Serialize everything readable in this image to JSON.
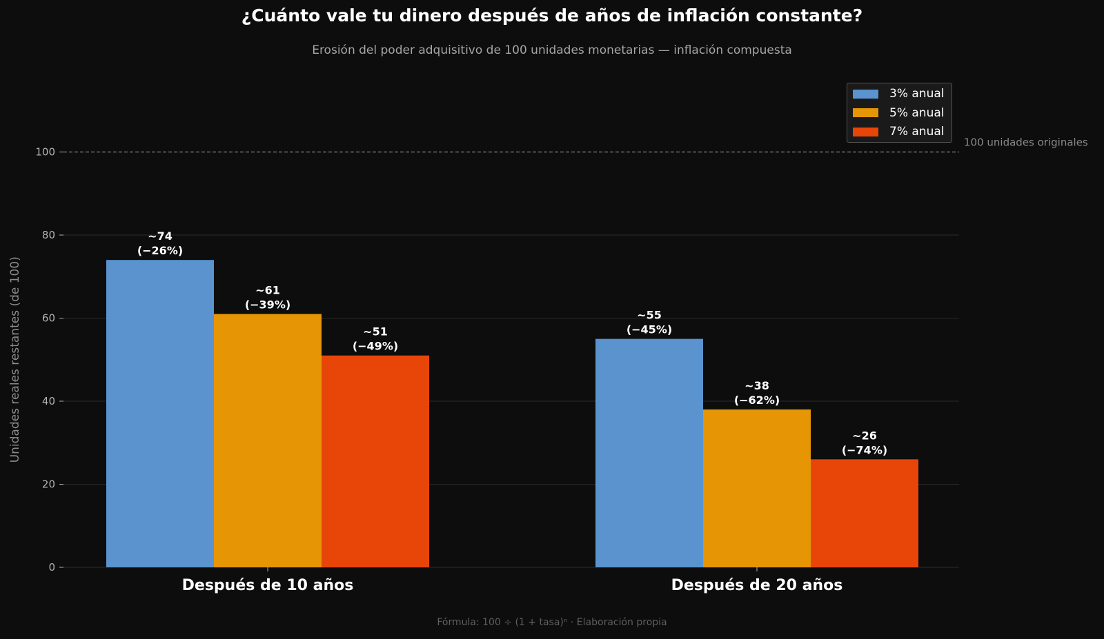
{
  "title": "¿Cuánto vale tu dinero después de años de inflación constante?",
  "subtitle": "Erosión del poder adquisitivo de 100 unidades monetarias — inflación compuesta",
  "footer": "Fórmula: 100 ÷ (1 + tasa)ⁿ   ·   Elaboración propia",
  "chart_data": {
    "type": "bar",
    "categories": [
      "Después de 10 años",
      "Después de 20 años"
    ],
    "series": [
      {
        "name": "3% anual",
        "color": "#5a93ce",
        "values": [
          74,
          55
        ],
        "labels": [
          "~74\n(−26%)",
          "~55\n(−45%)"
        ]
      },
      {
        "name": "5% anual",
        "color": "#e69505",
        "values": [
          61,
          38
        ],
        "labels": [
          "~61\n(−39%)",
          "~38\n(−62%)"
        ]
      },
      {
        "name": "7% anual",
        "color": "#e84608",
        "values": [
          51,
          26
        ],
        "labels": [
          "~51\n(−49%)",
          "~26\n(−74%)"
        ]
      }
    ],
    "ylabel": "Unidades reales restantes (de 100)",
    "ylim": [
      0,
      120
    ],
    "yticks": [
      0,
      20,
      40,
      60,
      80,
      100
    ],
    "reference_line": {
      "value": 100,
      "label": "100 unidades originales"
    },
    "grid": true,
    "legend_position": "top-right"
  }
}
